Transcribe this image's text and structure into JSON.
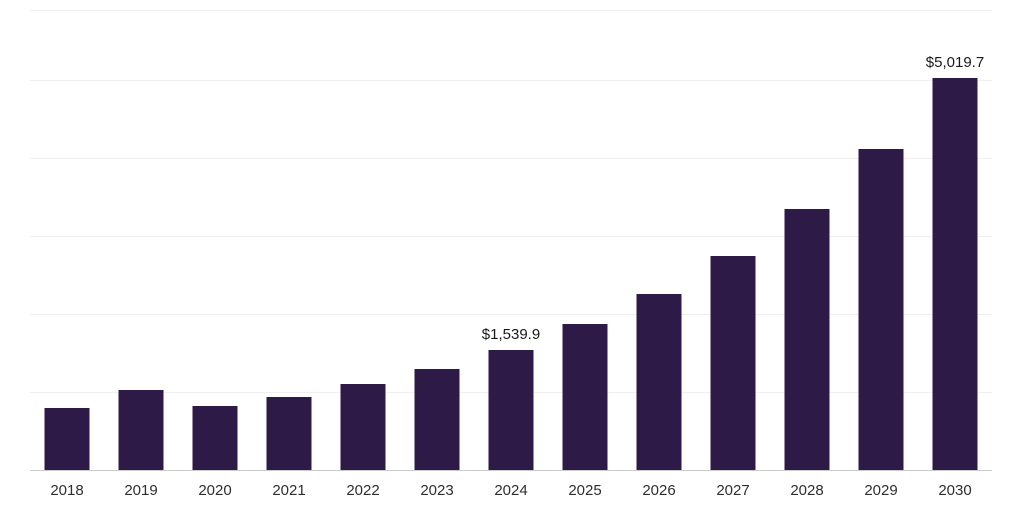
{
  "chart": {
    "background": "#ffffff",
    "bar_color": "#2e1a47",
    "gridline_color": "#efefef",
    "axis_line_color": "#cccccc",
    "label_color": "#2e2e2e"
  },
  "chart_data": {
    "type": "bar",
    "title": "",
    "xlabel": "",
    "ylabel": "",
    "categories": [
      "2018",
      "2019",
      "2020",
      "2021",
      "2022",
      "2023",
      "2024",
      "2025",
      "2026",
      "2027",
      "2028",
      "2029",
      "2030"
    ],
    "values": [
      790,
      1025,
      820,
      935,
      1100,
      1290,
      1539.9,
      1870,
      2255,
      2740,
      3340,
      4110,
      5019.7
    ],
    "data_labels": [
      "",
      "",
      "",
      "",
      "",
      "",
      "$1,539.9",
      "",
      "",
      "",
      "",
      "",
      "$5,019.7"
    ],
    "ylim": [
      0,
      5890
    ],
    "gridline_interval": 1000,
    "grid": true,
    "legend": "none",
    "y_axis_ticks_visible": false
  }
}
